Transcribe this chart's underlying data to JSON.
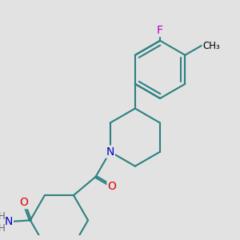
{
  "bg_color": "#e2e2e2",
  "bond_color": "#2d8080",
  "bond_width": 1.5,
  "atom_colors": {
    "O": "#dd0000",
    "N": "#0000cc",
    "F": "#bb00bb",
    "H": "#666666"
  },
  "font_size": 9,
  "bl": 1.0
}
